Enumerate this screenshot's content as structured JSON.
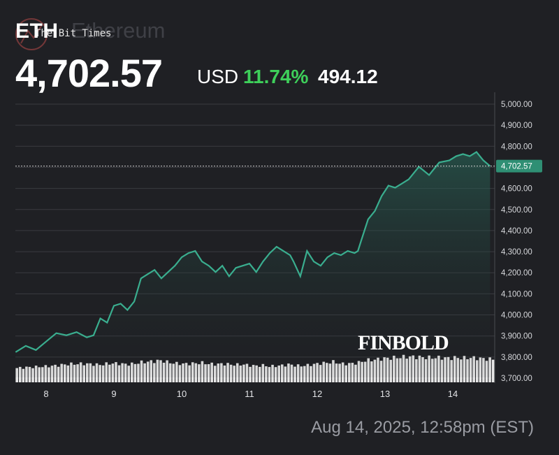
{
  "header": {
    "ticker": "ETH",
    "asset_name": "Ethereum",
    "watermark": "The Bit Times",
    "price": "4,702.57",
    "currency": "USD",
    "change_pct": "11.74%",
    "change_abs": "494.12"
  },
  "brand": "FINBOLD",
  "timestamp": "Aug 14, 2025, 12:58pm (EST)",
  "colors": {
    "background": "#1f2024",
    "line": "#3aae8f",
    "positive": "#3ecf5a",
    "badge": "#2f8f74",
    "volume": "#e8e8e8"
  },
  "chart_data": {
    "type": "area",
    "y_ticks": [
      "5,000.00",
      "4,900.00",
      "4,800.00",
      "4,700.00",
      "4,600.00",
      "4,500.00",
      "4,400.00",
      "4,300.00",
      "4,200.00",
      "4,100.00",
      "4,000.00",
      "3,900.00",
      "3,800.00",
      "3,700.00"
    ],
    "x_ticks": [
      "8",
      "9",
      "10",
      "11",
      "12",
      "13",
      "14"
    ],
    "ylim": [
      3700,
      5000
    ],
    "current_value": 4702.57,
    "current_label": "4,702.57",
    "grid": true,
    "x": [
      7.55,
      7.7,
      7.85,
      8.0,
      8.15,
      8.3,
      8.45,
      8.6,
      8.7,
      8.8,
      8.9,
      9.0,
      9.1,
      9.2,
      9.3,
      9.4,
      9.5,
      9.6,
      9.7,
      9.8,
      9.9,
      10.0,
      10.1,
      10.2,
      10.3,
      10.4,
      10.5,
      10.6,
      10.7,
      10.8,
      10.9,
      11.0,
      11.1,
      11.2,
      11.3,
      11.4,
      11.5,
      11.6,
      11.65,
      11.75,
      11.85,
      11.95,
      12.05,
      12.15,
      12.25,
      12.35,
      12.45,
      12.55,
      12.6,
      12.65,
      12.7,
      12.75,
      12.85,
      12.95,
      13.05,
      13.15,
      13.25,
      13.35,
      13.5,
      13.65,
      13.8,
      13.95,
      14.05,
      14.15,
      14.25,
      14.35,
      14.45,
      14.55
    ],
    "price": [
      3820,
      3850,
      3830,
      3870,
      3910,
      3900,
      3915,
      3890,
      3900,
      3980,
      3960,
      4040,
      4050,
      4020,
      4060,
      4170,
      4190,
      4210,
      4170,
      4200,
      4230,
      4270,
      4290,
      4300,
      4250,
      4230,
      4200,
      4230,
      4180,
      4220,
      4230,
      4240,
      4200,
      4250,
      4290,
      4320,
      4300,
      4280,
      4250,
      4180,
      4300,
      4250,
      4230,
      4270,
      4290,
      4280,
      4300,
      4290,
      4300,
      4350,
      4400,
      4450,
      4490,
      4560,
      4610,
      4600,
      4620,
      4640,
      4700,
      4660,
      4720,
      4730,
      4750,
      4760,
      4750,
      4770,
      4730,
      4702.57
    ],
    "volume_relative": [
      0.55,
      0.58,
      0.6,
      0.62,
      0.65,
      0.7,
      0.72,
      0.72,
      0.7,
      0.68,
      0.72,
      0.74,
      0.72,
      0.7,
      0.72,
      0.78,
      0.8,
      0.82,
      0.85,
      0.78,
      0.74,
      0.72,
      0.72,
      0.74,
      0.76,
      0.72,
      0.7,
      0.72,
      0.7,
      0.68,
      0.7,
      0.66,
      0.64,
      0.66,
      0.62,
      0.64,
      0.66,
      0.7,
      0.66,
      0.64,
      0.66,
      0.7,
      0.74,
      0.76,
      0.8,
      0.72,
      0.72,
      0.74,
      0.76,
      0.8,
      0.84,
      0.86,
      0.88,
      0.92,
      0.94,
      0.96,
      0.98,
      1.0,
      0.98,
      0.96,
      0.96,
      0.94,
      0.96,
      0.94,
      0.96,
      0.94,
      0.92,
      0.9
    ]
  }
}
